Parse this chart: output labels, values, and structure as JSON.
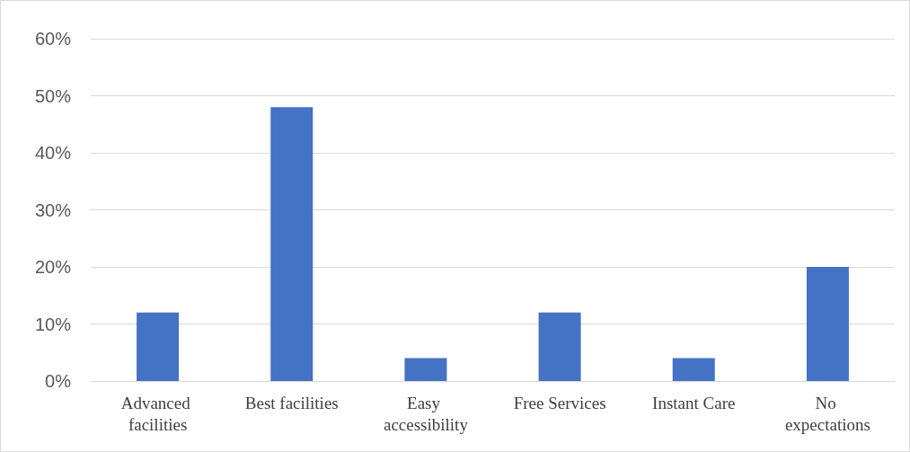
{
  "chart_data": {
    "type": "bar",
    "categories": [
      "Advanced facilities",
      "Best facilities",
      "Easy accessibility",
      "Free Services",
      "Instant Care",
      "No expectations"
    ],
    "values": [
      12,
      48,
      4,
      12,
      4,
      20
    ],
    "color": "#4472c4",
    "ylim": [
      0,
      60
    ],
    "yticks": [
      {
        "value": 0,
        "label": "0%"
      },
      {
        "value": 10,
        "label": "10%"
      },
      {
        "value": 20,
        "label": "20%"
      },
      {
        "value": 30,
        "label": "30%"
      },
      {
        "value": 40,
        "label": "40%"
      },
      {
        "value": 50,
        "label": "50%"
      },
      {
        "value": 60,
        "label": "60%"
      }
    ],
    "grid": "y"
  }
}
